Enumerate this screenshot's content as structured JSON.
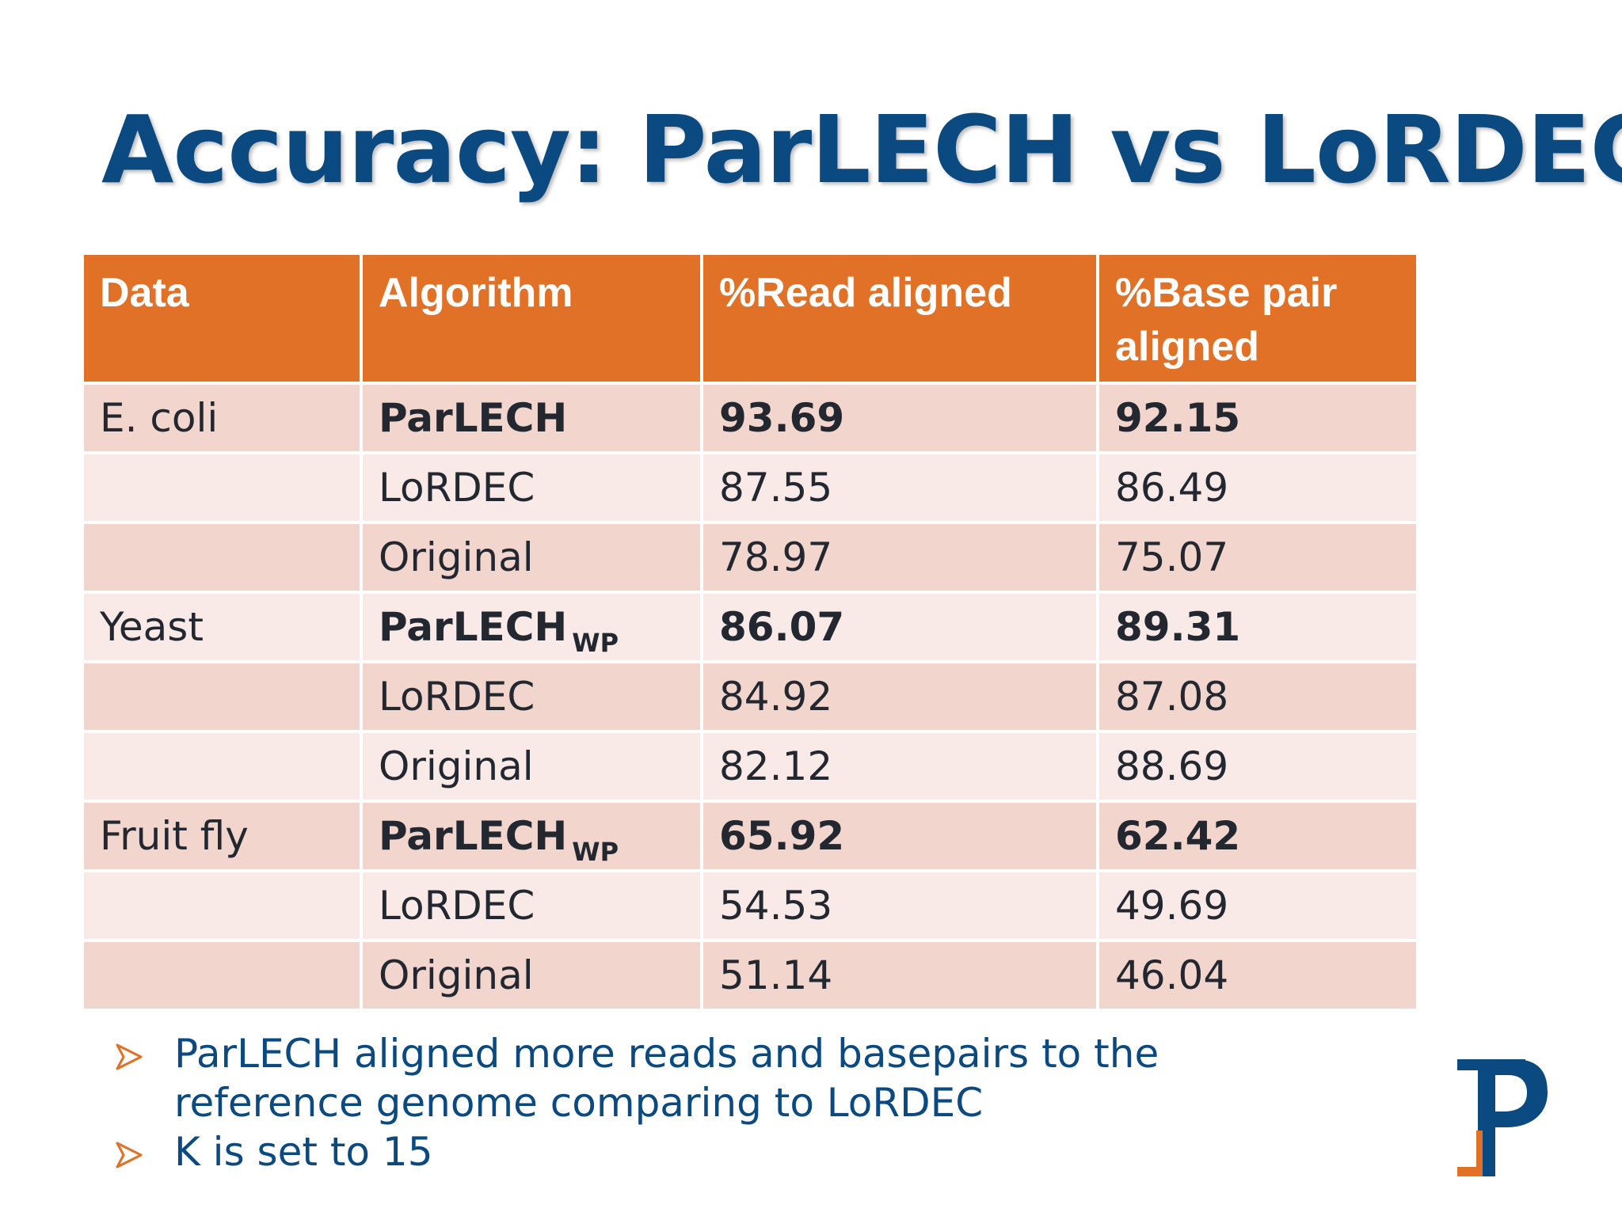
{
  "slide": {
    "title": "Accuracy: ParLECH vs LoRDEC"
  },
  "table": {
    "headers": [
      "Data",
      "Algorithm",
      "%Read aligned",
      "%Base pair aligned"
    ],
    "rows": [
      {
        "data": "E. coli",
        "algorithm": "ParLECH",
        "subscript": "",
        "read": "93.69",
        "base": "92.15",
        "bold": true
      },
      {
        "data": "",
        "algorithm": "LoRDEC",
        "subscript": "",
        "read": "87.55",
        "base": "86.49",
        "bold": false
      },
      {
        "data": "",
        "algorithm": "Original",
        "subscript": "",
        "read": "78.97",
        "base": "75.07",
        "bold": false
      },
      {
        "data": "Yeast",
        "algorithm": "ParLECH",
        "subscript": "WP",
        "read": "86.07",
        "base": "89.31",
        "bold": true
      },
      {
        "data": "",
        "algorithm": "LoRDEC",
        "subscript": "",
        "read": "84.92",
        "base": "87.08",
        "bold": false
      },
      {
        "data": "",
        "algorithm": "Original",
        "subscript": "",
        "read": "82.12",
        "base": "88.69",
        "bold": false
      },
      {
        "data": "Fruit fly",
        "algorithm": "ParLECH",
        "subscript": "WP",
        "read": "65.92",
        "base": "62.42",
        "bold": true
      },
      {
        "data": "",
        "algorithm": "LoRDEC",
        "subscript": "",
        "read": "54.53",
        "base": "49.69",
        "bold": false
      },
      {
        "data": "",
        "algorithm": "Original",
        "subscript": "",
        "read": "51.14",
        "base": "46.04",
        "bold": false
      }
    ]
  },
  "bullets": [
    "ParLECH aligned more reads and basepairs to the reference genome comparing to LoRDEC",
    "K is set to 15"
  ],
  "colors": {
    "title": "#0b4a80",
    "header_bg": "#e07127",
    "row_odd": "#f2d5cd",
    "row_even": "#f9e9e7",
    "bullet_arrow": "#e07127"
  },
  "icons": {
    "bullet": "arrowhead-bullet-icon",
    "logo": "p-logo-icon"
  }
}
